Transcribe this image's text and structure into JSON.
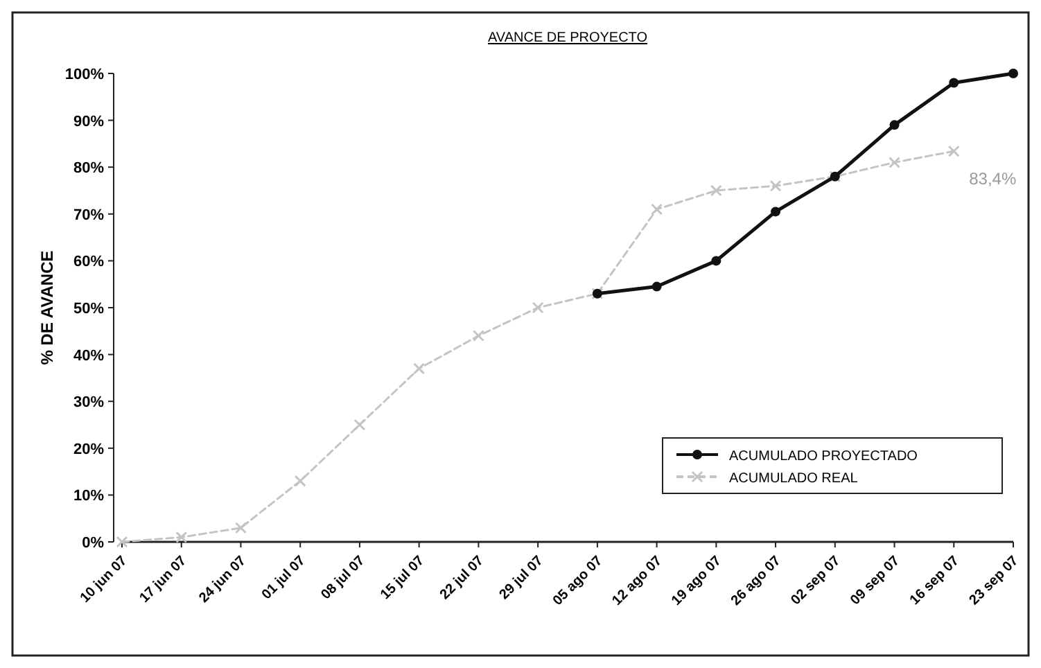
{
  "chart_data": {
    "type": "line",
    "title": "AVANCE DE PROYECTO",
    "ylabel": "% DE AVANCE",
    "categories": [
      "10 jun 07",
      "17 jun 07",
      "24 jun 07",
      "01 jul 07",
      "08 jul 07",
      "15 jul 07",
      "22 jul 07",
      "29 jul 07",
      "05 ago 07",
      "12 ago 07",
      "19 ago 07",
      "26 ago 07",
      "02 sep 07",
      "09 sep 07",
      "16 sep 07",
      "23 sep 07"
    ],
    "series": [
      {
        "name": "ACUMULADO PROYECTADO",
        "color": "#111111",
        "marker": "circle",
        "line_style": "solid",
        "values": [
          null,
          null,
          null,
          null,
          null,
          null,
          null,
          null,
          53,
          54.5,
          60,
          70.5,
          78,
          89,
          98,
          100
        ]
      },
      {
        "name": "ACUMULADO REAL",
        "color": "#c4c4c4",
        "marker": "cross",
        "line_style": "dashed",
        "values": [
          0,
          1,
          3,
          13,
          25,
          37,
          44,
          50,
          53,
          71,
          75,
          76,
          78,
          81,
          83.4,
          null
        ]
      }
    ],
    "ylim": [
      0,
      100
    ],
    "yticks": [
      {
        "value": 0,
        "label": "0%"
      },
      {
        "value": 10,
        "label": "10%"
      },
      {
        "value": 20,
        "label": "20%"
      },
      {
        "value": 30,
        "label": "30%"
      },
      {
        "value": 40,
        "label": "40%"
      },
      {
        "value": 50,
        "label": "50%"
      },
      {
        "value": 60,
        "label": "60%"
      },
      {
        "value": 70,
        "label": "70%"
      },
      {
        "value": 80,
        "label": "80%"
      },
      {
        "value": 90,
        "label": "90%"
      },
      {
        "value": 100,
        "label": "100%"
      }
    ],
    "annotations": [
      {
        "text": "83,4%",
        "x": "16 sep 07",
        "y": 83.4
      }
    ],
    "grid": false,
    "legend": "bottom right"
  }
}
